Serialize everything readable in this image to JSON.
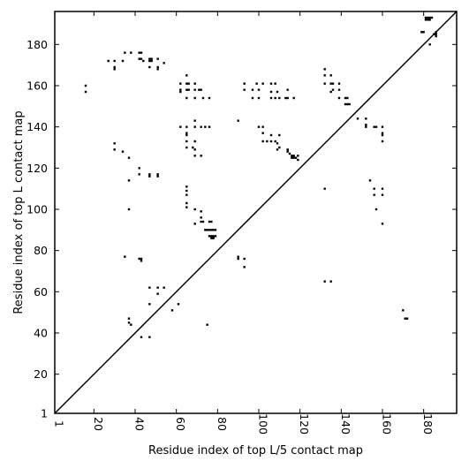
{
  "chart_data": {
    "type": "scatter",
    "xlabel": "Residue index of top L/5 contact map",
    "ylabel": "Residue index of top L contact map",
    "xlim": [
      1,
      196
    ],
    "ylim": [
      1,
      196
    ],
    "x_ticks": [
      1,
      20,
      40,
      60,
      80,
      100,
      120,
      140,
      160,
      180
    ],
    "y_ticks": [
      1,
      20,
      40,
      60,
      80,
      100,
      120,
      140,
      160,
      180
    ],
    "diagonal_line": true,
    "grid": false,
    "marker": "square",
    "color": "#000000",
    "series": [
      {
        "region": "upper-left (top L contacts)",
        "points": [
          [
            16,
            160
          ],
          [
            16,
            157
          ],
          [
            27,
            172
          ],
          [
            30,
            172
          ],
          [
            30,
            169
          ],
          [
            30,
            168
          ],
          [
            34,
            172
          ],
          [
            35,
            176
          ],
          [
            38,
            176
          ],
          [
            42,
            176
          ],
          [
            43,
            176
          ],
          [
            42,
            173
          ],
          [
            43,
            173
          ],
          [
            44,
            172
          ],
          [
            47,
            173
          ],
          [
            48,
            173
          ],
          [
            47,
            172
          ],
          [
            48,
            172
          ],
          [
            47,
            169
          ],
          [
            51,
            173
          ],
          [
            51,
            169
          ],
          [
            51,
            168
          ],
          [
            54,
            171
          ],
          [
            62,
            161
          ],
          [
            62,
            158
          ],
          [
            62,
            157
          ],
          [
            65,
            165
          ],
          [
            65,
            161
          ],
          [
            66,
            161
          ],
          [
            65,
            158
          ],
          [
            66,
            158
          ],
          [
            65,
            154
          ],
          [
            69,
            161
          ],
          [
            69,
            158
          ],
          [
            69,
            154
          ],
          [
            71,
            158
          ],
          [
            72,
            158
          ],
          [
            73,
            154
          ],
          [
            76,
            154
          ],
          [
            93,
            161
          ],
          [
            93,
            158
          ],
          [
            97,
            158
          ],
          [
            97,
            154
          ],
          [
            99,
            161
          ],
          [
            100,
            158
          ],
          [
            100,
            154
          ],
          [
            102,
            161
          ],
          [
            106,
            161
          ],
          [
            108,
            161
          ],
          [
            106,
            157
          ],
          [
            109,
            157
          ],
          [
            108,
            154
          ],
          [
            106,
            154
          ],
          [
            110,
            154
          ],
          [
            113,
            154
          ],
          [
            114,
            158
          ],
          [
            114,
            154
          ],
          [
            117,
            154
          ],
          [
            132,
            168
          ],
          [
            132,
            165
          ],
          [
            132,
            161
          ],
          [
            135,
            165
          ],
          [
            135,
            161
          ],
          [
            136,
            161
          ],
          [
            136,
            158
          ],
          [
            135,
            157
          ],
          [
            139,
            161
          ],
          [
            139,
            158
          ],
          [
            139,
            154
          ],
          [
            142,
            154
          ],
          [
            143,
            154
          ],
          [
            142,
            151
          ],
          [
            143,
            151
          ],
          [
            144,
            151
          ],
          [
            148,
            144
          ],
          [
            152,
            144
          ],
          [
            152,
            141
          ],
          [
            152,
            140
          ],
          [
            156,
            140
          ],
          [
            157,
            140
          ],
          [
            160,
            140
          ],
          [
            160,
            137
          ],
          [
            160,
            136
          ],
          [
            160,
            133
          ],
          [
            62,
            140
          ],
          [
            65,
            140
          ],
          [
            65,
            137
          ],
          [
            65,
            136
          ],
          [
            65,
            133
          ],
          [
            65,
            130
          ],
          [
            68,
            130
          ],
          [
            69,
            129
          ],
          [
            69,
            133
          ],
          [
            69,
            140
          ],
          [
            69,
            143
          ],
          [
            69,
            126
          ],
          [
            72,
            126
          ],
          [
            72,
            140
          ],
          [
            74,
            140
          ],
          [
            76,
            140
          ],
          [
            90,
            143
          ],
          [
            100,
            140
          ],
          [
            102,
            140
          ],
          [
            102,
            137
          ],
          [
            102,
            133
          ],
          [
            104,
            133
          ],
          [
            106,
            136
          ],
          [
            106,
            133
          ],
          [
            108,
            133
          ],
          [
            109,
            132
          ],
          [
            109,
            129
          ],
          [
            110,
            130
          ],
          [
            110,
            136
          ],
          [
            114,
            129
          ],
          [
            114,
            128
          ],
          [
            115,
            127
          ],
          [
            116,
            126
          ],
          [
            117,
            126
          ],
          [
            116,
            125
          ],
          [
            117,
            125
          ],
          [
            118,
            125
          ],
          [
            119,
            124
          ],
          [
            119,
            126
          ],
          [
            30,
            132
          ],
          [
            30,
            129
          ],
          [
            34,
            128
          ],
          [
            37,
            125
          ],
          [
            37,
            114
          ],
          [
            42,
            120
          ],
          [
            42,
            117
          ],
          [
            47,
            117
          ],
          [
            47,
            116
          ],
          [
            51,
            117
          ],
          [
            51,
            116
          ],
          [
            65,
            111
          ],
          [
            65,
            109
          ],
          [
            65,
            107
          ],
          [
            65,
            103
          ],
          [
            65,
            101
          ],
          [
            69,
            100
          ],
          [
            72,
            99
          ],
          [
            72,
            96
          ],
          [
            69,
            93
          ],
          [
            72,
            94
          ],
          [
            73,
            94
          ],
          [
            76,
            94
          ],
          [
            77,
            94
          ],
          [
            74,
            90
          ],
          [
            75,
            90
          ],
          [
            76,
            90
          ],
          [
            77,
            90
          ],
          [
            78,
            90
          ],
          [
            79,
            90
          ],
          [
            76,
            87
          ],
          [
            77,
            87
          ],
          [
            78,
            87
          ],
          [
            77,
            86
          ],
          [
            78,
            86
          ],
          [
            79,
            87
          ],
          [
            132,
            110
          ],
          [
            156,
            110
          ],
          [
            156,
            107
          ],
          [
            157,
            100
          ],
          [
            160,
            110
          ],
          [
            160,
            107
          ],
          [
            160,
            93
          ],
          [
            154,
            114
          ],
          [
            37,
            100
          ],
          [
            35,
            77
          ],
          [
            42,
            76
          ],
          [
            43,
            75
          ],
          [
            43,
            76
          ],
          [
            90,
            77
          ],
          [
            90,
            76
          ],
          [
            93,
            76
          ],
          [
            93,
            72
          ],
          [
            47,
            62
          ],
          [
            51,
            62
          ],
          [
            54,
            62
          ],
          [
            51,
            59
          ],
          [
            47,
            54
          ],
          [
            58,
            51
          ],
          [
            61,
            54
          ],
          [
            37,
            47
          ],
          [
            37,
            45
          ],
          [
            38,
            44
          ],
          [
            43,
            38
          ],
          [
            47,
            38
          ],
          [
            75,
            44
          ],
          [
            132,
            65
          ],
          [
            135,
            65
          ],
          [
            170,
            51
          ],
          [
            171,
            47
          ],
          [
            172,
            47
          ],
          [
            179,
            186
          ],
          [
            180,
            186
          ],
          [
            186,
            186
          ],
          [
            186,
            185
          ],
          [
            186,
            184
          ],
          [
            185,
            185
          ],
          [
            183,
            180
          ],
          [
            181,
            193
          ],
          [
            182,
            193
          ],
          [
            181,
            192
          ],
          [
            182,
            192
          ],
          [
            183,
            193
          ],
          [
            183,
            192
          ],
          [
            184,
            193
          ]
        ]
      }
    ]
  }
}
